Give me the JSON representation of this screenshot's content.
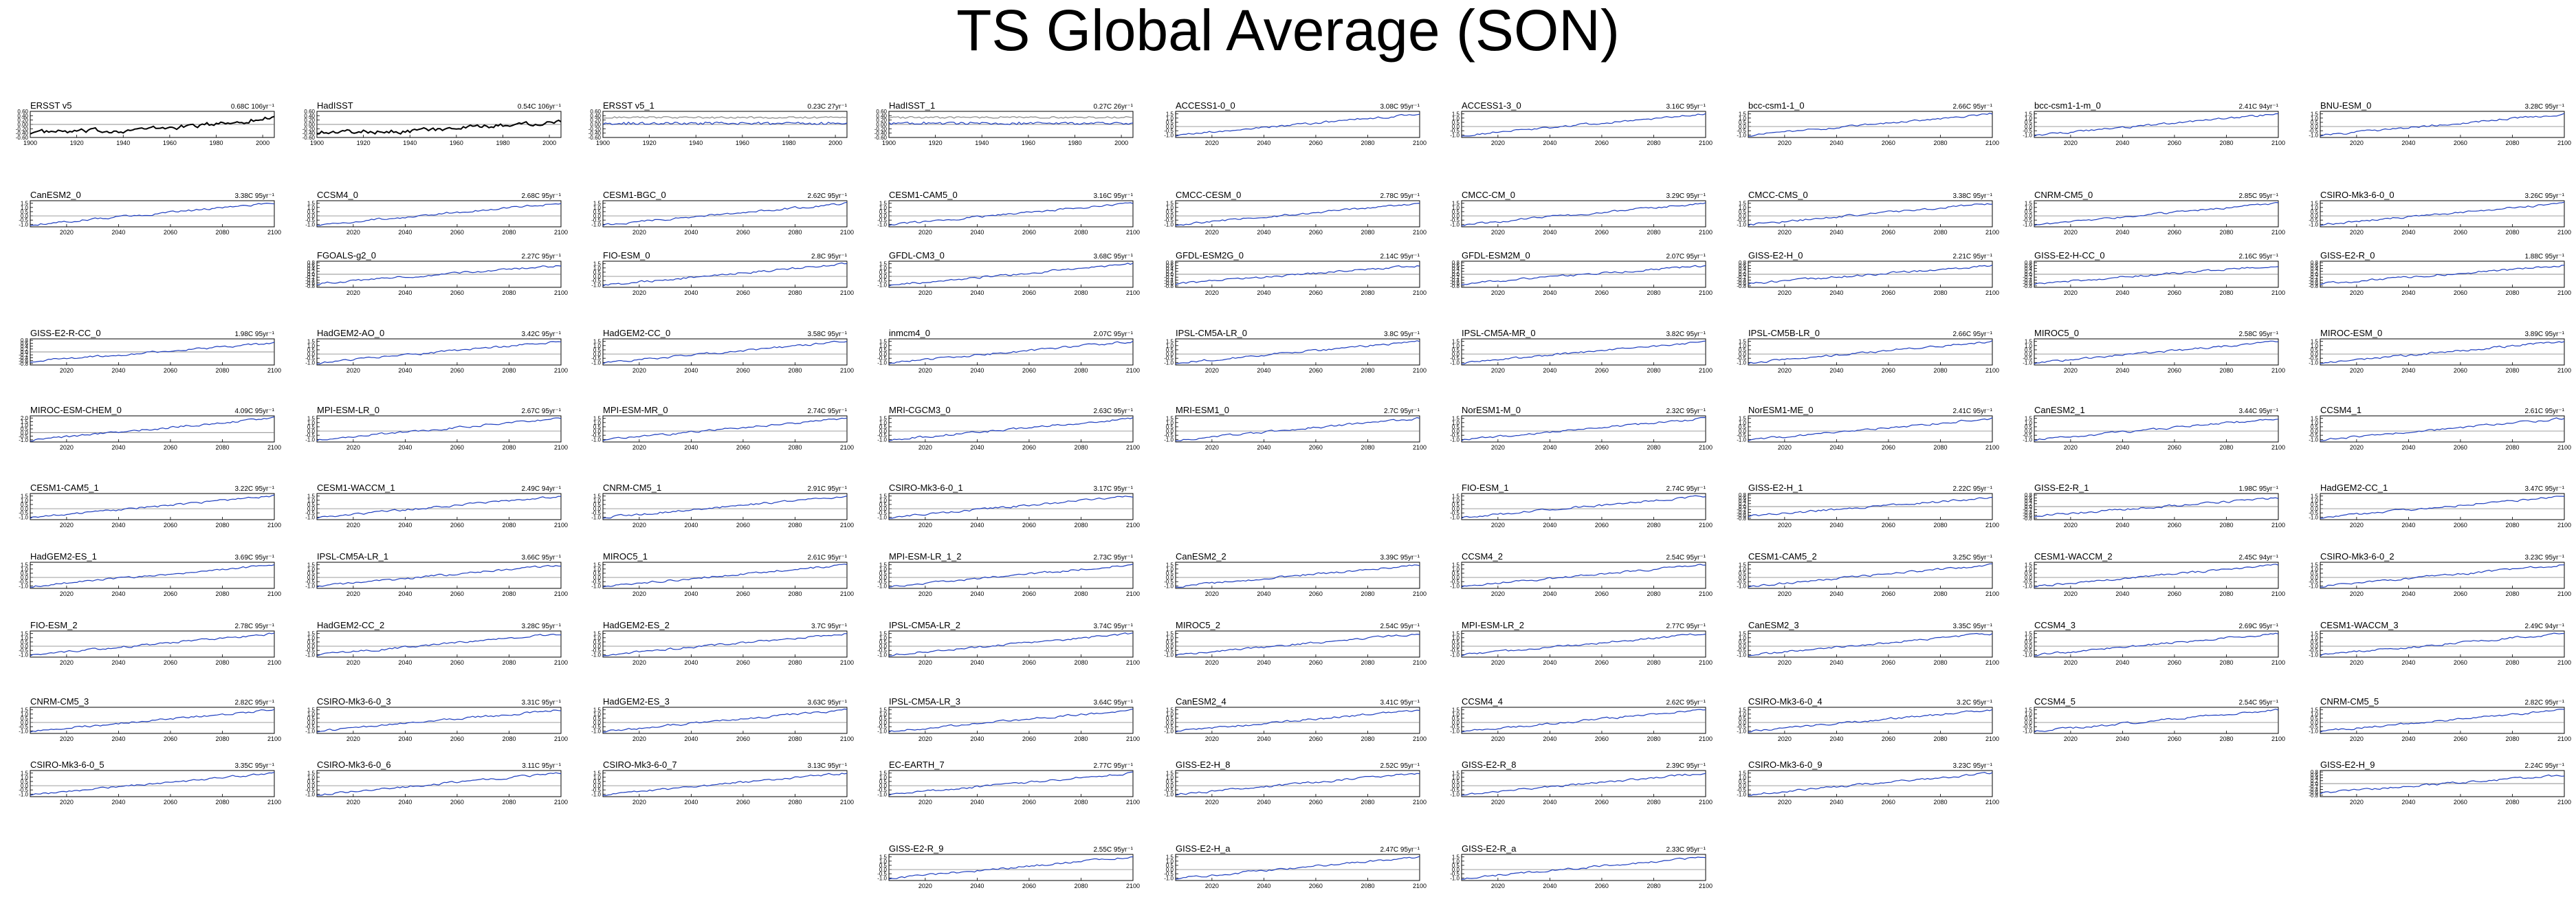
{
  "title": "TS Global Average (SON)",
  "colors": {
    "model_line": "#1f3fbf",
    "obs_line": "#000000",
    "zero_line": "#666666",
    "frame": "#000000"
  },
  "axes": {
    "obs_x_ticks": [
      "1900",
      "1920",
      "1940",
      "1960",
      "1980",
      "2000"
    ],
    "proj_x_ticks": [
      "2020",
      "2040",
      "2060",
      "2080",
      "2100"
    ],
    "y_ticks_large": [
      "1.5",
      "1.0",
      "0.5",
      "0.0",
      "-0.5",
      "-1.0"
    ],
    "y_ticks_small": [
      "0.8",
      "0.6",
      "0.4",
      "0.2",
      "0.0",
      "-0.2",
      "-0.4",
      "-0.6",
      "-0.8"
    ],
    "y_ticks_obs": [
      "0.60",
      "0.40",
      "0.20",
      "0.00",
      "-0.20",
      "-0.40",
      "-0.60"
    ],
    "y_ticks_wide": [
      "2.0",
      "1.5",
      "1.0",
      "0.5",
      "0.0",
      "-0.5",
      "-1.0"
    ]
  },
  "chart_data": [
    {
      "type": "line",
      "title": "ERSST v5",
      "trend": "0.68C 106yr⁻¹",
      "scale": "obs",
      "xlim": [
        1900,
        2005
      ],
      "ylim": [
        -0.6,
        0.6
      ],
      "trend_value": 0.68,
      "slot": [
        0,
        0
      ]
    },
    {
      "type": "line",
      "title": "HadISST",
      "trend": "0.54C 106yr⁻¹",
      "scale": "obs",
      "xlim": [
        1900,
        2005
      ],
      "ylim": [
        -0.6,
        0.6
      ],
      "trend_value": 0.54,
      "slot": [
        0,
        1
      ]
    },
    {
      "type": "line",
      "title": "ERSST v5_1",
      "trend": "0.23C 27yr⁻¹",
      "scale": "obsflat",
      "xlim": [
        1900,
        2005
      ],
      "ylim": [
        -0.6,
        0.6
      ],
      "trend_value": 0.23,
      "slot": [
        0,
        2
      ]
    },
    {
      "type": "line",
      "title": "HadISST_1",
      "trend": "0.27C 26yr⁻¹",
      "scale": "obsflat",
      "xlim": [
        1900,
        2005
      ],
      "ylim": [
        -0.6,
        0.6
      ],
      "trend_value": 0.27,
      "slot": [
        0,
        3
      ]
    },
    {
      "type": "line",
      "title": "ACCESS1-0_0",
      "trend": "3.08C 95yr⁻¹",
      "scale": "large",
      "trend_value": 3.08,
      "slot": [
        0,
        4
      ]
    },
    {
      "type": "line",
      "title": "ACCESS1-3_0",
      "trend": "3.16C 95yr⁻¹",
      "scale": "large",
      "trend_value": 3.16,
      "slot": [
        0,
        5
      ]
    },
    {
      "type": "line",
      "title": "bcc-csm1-1_0",
      "trend": "2.66C 95yr⁻¹",
      "scale": "large",
      "trend_value": 2.66,
      "slot": [
        0,
        6
      ]
    },
    {
      "type": "line",
      "title": "bcc-csm1-1-m_0",
      "trend": "2.41C 94yr⁻¹",
      "scale": "large",
      "trend_value": 2.41,
      "slot": [
        0,
        7
      ]
    },
    {
      "type": "line",
      "title": "BNU-ESM_0",
      "trend": "3.28C 95yr⁻¹",
      "scale": "large",
      "trend_value": 3.28,
      "slot": [
        0,
        8
      ]
    },
    {
      "type": "line",
      "title": "CanESM2_0",
      "trend": "3.38C 95yr⁻¹",
      "scale": "large",
      "trend_value": 3.38,
      "slot": [
        1,
        0
      ]
    },
    {
      "type": "line",
      "title": "CCSM4_0",
      "trend": "2.68C 95yr⁻¹",
      "scale": "large",
      "trend_value": 2.68,
      "slot": [
        1,
        1
      ]
    },
    {
      "type": "line",
      "title": "CESM1-BGC_0",
      "trend": "2.62C 95yr⁻¹",
      "scale": "large",
      "trend_value": 2.62,
      "slot": [
        1,
        2
      ]
    },
    {
      "type": "line",
      "title": "CESM1-CAM5_0",
      "trend": "3.16C 95yr⁻¹",
      "scale": "large",
      "trend_value": 3.16,
      "slot": [
        1,
        3
      ]
    },
    {
      "type": "line",
      "title": "CMCC-CESM_0",
      "trend": "2.78C 95yr⁻¹",
      "scale": "large",
      "trend_value": 2.78,
      "slot": [
        1,
        4
      ]
    },
    {
      "type": "line",
      "title": "CMCC-CM_0",
      "trend": "3.29C 95yr⁻¹",
      "scale": "large",
      "trend_value": 3.29,
      "slot": [
        1,
        5
      ]
    },
    {
      "type": "line",
      "title": "CMCC-CMS_0",
      "trend": "3.38C 95yr⁻¹",
      "scale": "large",
      "trend_value": 3.38,
      "slot": [
        1,
        6
      ]
    },
    {
      "type": "line",
      "title": "CNRM-CM5_0",
      "trend": "2.85C 95yr⁻¹",
      "scale": "large",
      "trend_value": 2.85,
      "slot": [
        1,
        7
      ]
    },
    {
      "type": "line",
      "title": "CSIRO-Mk3-6-0_0",
      "trend": "3.26C 95yr⁻¹",
      "scale": "large",
      "trend_value": 3.26,
      "slot": [
        1,
        8
      ]
    },
    {
      "type": "line",
      "title": "FGOALS-g2_0",
      "trend": "2.27C 95yr⁻¹",
      "scale": "small",
      "trend_value": 2.27,
      "slot": [
        2,
        1
      ]
    },
    {
      "type": "line",
      "title": "FIO-ESM_0",
      "trend": "2.8C 95yr⁻¹",
      "scale": "large",
      "trend_value": 2.8,
      "slot": [
        2,
        2
      ]
    },
    {
      "type": "line",
      "title": "GFDL-CM3_0",
      "trend": "3.68C 95yr⁻¹",
      "scale": "large",
      "trend_value": 3.68,
      "slot": [
        2,
        3
      ]
    },
    {
      "type": "line",
      "title": "GFDL-ESM2G_0",
      "trend": "2.14C 95yr⁻¹",
      "scale": "small",
      "trend_value": 2.14,
      "slot": [
        2,
        4
      ]
    },
    {
      "type": "line",
      "title": "GFDL-ESM2M_0",
      "trend": "2.07C 95yr⁻¹",
      "scale": "small",
      "trend_value": 2.07,
      "slot": [
        2,
        5
      ]
    },
    {
      "type": "line",
      "title": "GISS-E2-H_0",
      "trend": "2.21C 95yr⁻¹",
      "scale": "small",
      "trend_value": 2.21,
      "slot": [
        2,
        6
      ]
    },
    {
      "type": "line",
      "title": "GISS-E2-H-CC_0",
      "trend": "2.16C 95yr⁻¹",
      "scale": "small",
      "trend_value": 2.16,
      "slot": [
        2,
        7
      ]
    },
    {
      "type": "line",
      "title": "GISS-E2-R_0",
      "trend": "1.88C 95yr⁻¹",
      "scale": "small",
      "trend_value": 1.88,
      "slot": [
        2,
        8
      ]
    },
    {
      "type": "line",
      "title": "GISS-E2-R-CC_0",
      "trend": "1.98C 95yr⁻¹",
      "scale": "small",
      "trend_value": 1.98,
      "slot": [
        3,
        0
      ]
    },
    {
      "type": "line",
      "title": "HadGEM2-AO_0",
      "trend": "3.42C 95yr⁻¹",
      "scale": "large",
      "trend_value": 3.42,
      "slot": [
        3,
        1
      ]
    },
    {
      "type": "line",
      "title": "HadGEM2-CC_0",
      "trend": "3.58C 95yr⁻¹",
      "scale": "large",
      "trend_value": 3.58,
      "slot": [
        3,
        2
      ]
    },
    {
      "type": "line",
      "title": "inmcm4_0",
      "trend": "2.07C 95yr⁻¹",
      "scale": "large",
      "trend_value": 2.07,
      "slot": [
        3,
        3
      ]
    },
    {
      "type": "line",
      "title": "IPSL-CM5A-LR_0",
      "trend": "3.8C 95yr⁻¹",
      "scale": "large",
      "trend_value": 3.8,
      "slot": [
        3,
        4
      ]
    },
    {
      "type": "line",
      "title": "IPSL-CM5A-MR_0",
      "trend": "3.82C 95yr⁻¹",
      "scale": "large",
      "trend_value": 3.82,
      "slot": [
        3,
        5
      ]
    },
    {
      "type": "line",
      "title": "IPSL-CM5B-LR_0",
      "trend": "2.66C 95yr⁻¹",
      "scale": "large",
      "trend_value": 2.66,
      "slot": [
        3,
        6
      ]
    },
    {
      "type": "line",
      "title": "MIROC5_0",
      "trend": "2.58C 95yr⁻¹",
      "scale": "large",
      "trend_value": 2.58,
      "slot": [
        3,
        7
      ]
    },
    {
      "type": "line",
      "title": "MIROC-ESM_0",
      "trend": "3.89C 95yr⁻¹",
      "scale": "large",
      "trend_value": 3.89,
      "slot": [
        3,
        8
      ]
    },
    {
      "type": "line",
      "title": "MIROC-ESM-CHEM_0",
      "trend": "4.09C 95yr⁻¹",
      "scale": "wide",
      "trend_value": 4.09,
      "slot": [
        4,
        0
      ]
    },
    {
      "type": "line",
      "title": "MPI-ESM-LR_0",
      "trend": "2.67C 95yr⁻¹",
      "scale": "large",
      "trend_value": 2.67,
      "slot": [
        4,
        1
      ]
    },
    {
      "type": "line",
      "title": "MPI-ESM-MR_0",
      "trend": "2.74C 95yr⁻¹",
      "scale": "large",
      "trend_value": 2.74,
      "slot": [
        4,
        2
      ]
    },
    {
      "type": "line",
      "title": "MRI-CGCM3_0",
      "trend": "2.63C 95yr⁻¹",
      "scale": "large",
      "trend_value": 2.63,
      "slot": [
        4,
        3
      ]
    },
    {
      "type": "line",
      "title": "MRI-ESM1_0",
      "trend": "2.7C 95yr⁻¹",
      "scale": "large",
      "trend_value": 2.7,
      "slot": [
        4,
        4
      ]
    },
    {
      "type": "line",
      "title": "NorESM1-M_0",
      "trend": "2.32C 95yr⁻¹",
      "scale": "large",
      "trend_value": 2.32,
      "slot": [
        4,
        5
      ]
    },
    {
      "type": "line",
      "title": "NorESM1-ME_0",
      "trend": "2.41C 95yr⁻¹",
      "scale": "large",
      "trend_value": 2.41,
      "slot": [
        4,
        6
      ]
    },
    {
      "type": "line",
      "title": "CanESM2_1",
      "trend": "3.44C 95yr⁻¹",
      "scale": "large",
      "trend_value": 3.44,
      "slot": [
        4,
        7
      ]
    },
    {
      "type": "line",
      "title": "CCSM4_1",
      "trend": "2.61C 95yr⁻¹",
      "scale": "large",
      "trend_value": 2.61,
      "slot": [
        4,
        8
      ]
    },
    {
      "type": "line",
      "title": "CESM1-CAM5_1",
      "trend": "3.22C 95yr⁻¹",
      "scale": "large",
      "trend_value": 3.22,
      "slot": [
        5,
        0
      ]
    },
    {
      "type": "line",
      "title": "CESM1-WACCM_1",
      "trend": "2.49C 94yr⁻¹",
      "scale": "large",
      "trend_value": 2.49,
      "slot": [
        5,
        1
      ]
    },
    {
      "type": "line",
      "title": "CNRM-CM5_1",
      "trend": "2.91C 95yr⁻¹",
      "scale": "large",
      "trend_value": 2.91,
      "slot": [
        5,
        2
      ]
    },
    {
      "type": "line",
      "title": "CSIRO-Mk3-6-0_1",
      "trend": "3.17C 95yr⁻¹",
      "scale": "large",
      "trend_value": 3.17,
      "slot": [
        5,
        3
      ]
    },
    {
      "type": "line",
      "title": "FIO-ESM_1",
      "trend": "2.74C 95yr⁻¹",
      "scale": "large",
      "trend_value": 2.74,
      "slot": [
        5,
        5
      ]
    },
    {
      "type": "line",
      "title": "GISS-E2-H_1",
      "trend": "2.22C 95yr⁻¹",
      "scale": "small",
      "trend_value": 2.22,
      "slot": [
        5,
        6
      ]
    },
    {
      "type": "line",
      "title": "GISS-E2-R_1",
      "trend": "1.98C 95yr⁻¹",
      "scale": "small",
      "trend_value": 1.98,
      "slot": [
        5,
        7
      ]
    },
    {
      "type": "line",
      "title": "HadGEM2-CC_1",
      "trend": "3.47C 95yr⁻¹",
      "scale": "large",
      "trend_value": 3.47,
      "slot": [
        5,
        8
      ]
    },
    {
      "type": "line",
      "title": "HadGEM2-ES_1",
      "trend": "3.69C 95yr⁻¹",
      "scale": "large",
      "trend_value": 3.69,
      "slot": [
        6,
        0
      ]
    },
    {
      "type": "line",
      "title": "IPSL-CM5A-LR_1",
      "trend": "3.66C 95yr⁻¹",
      "scale": "large",
      "trend_value": 3.66,
      "slot": [
        6,
        1
      ]
    },
    {
      "type": "line",
      "title": "MIROC5_1",
      "trend": "2.61C 95yr⁻¹",
      "scale": "large",
      "trend_value": 2.61,
      "slot": [
        6,
        2
      ]
    },
    {
      "type": "line",
      "title": "MPI-ESM-LR_1_2",
      "trend": "2.73C 95yr⁻¹",
      "scale": "large",
      "trend_value": 2.73,
      "slot": [
        6,
        3
      ]
    },
    {
      "type": "line",
      "title": "CanESM2_2",
      "trend": "3.39C 95yr⁻¹",
      "scale": "large",
      "trend_value": 3.39,
      "slot": [
        6,
        4
      ]
    },
    {
      "type": "line",
      "title": "CCSM4_2",
      "trend": "2.54C 95yr⁻¹",
      "scale": "large",
      "trend_value": 2.54,
      "slot": [
        6,
        5
      ]
    },
    {
      "type": "line",
      "title": "CESM1-CAM5_2",
      "trend": "3.25C 95yr⁻¹",
      "scale": "large",
      "trend_value": 3.25,
      "slot": [
        6,
        6
      ]
    },
    {
      "type": "line",
      "title": "CESM1-WACCM_2",
      "trend": "2.45C 94yr⁻¹",
      "scale": "large",
      "trend_value": 2.45,
      "slot": [
        6,
        7
      ]
    },
    {
      "type": "line",
      "title": "CSIRO-Mk3-6-0_2",
      "trend": "3.23C 95yr⁻¹",
      "scale": "large",
      "trend_value": 3.23,
      "slot": [
        6,
        8
      ]
    },
    {
      "type": "line",
      "title": "FIO-ESM_2",
      "trend": "2.78C 95yr⁻¹",
      "scale": "large",
      "trend_value": 2.78,
      "slot": [
        7,
        0
      ]
    },
    {
      "type": "line",
      "title": "HadGEM2-CC_2",
      "trend": "3.28C 95yr⁻¹",
      "scale": "large",
      "trend_value": 3.28,
      "slot": [
        7,
        1
      ]
    },
    {
      "type": "line",
      "title": "HadGEM2-ES_2",
      "trend": "3.7C 95yr⁻¹",
      "scale": "large",
      "trend_value": 3.7,
      "slot": [
        7,
        2
      ]
    },
    {
      "type": "line",
      "title": "IPSL-CM5A-LR_2",
      "trend": "3.74C 95yr⁻¹",
      "scale": "large",
      "trend_value": 3.74,
      "slot": [
        7,
        3
      ]
    },
    {
      "type": "line",
      "title": "MIROC5_2",
      "trend": "2.54C 95yr⁻¹",
      "scale": "large",
      "trend_value": 2.54,
      "slot": [
        7,
        4
      ]
    },
    {
      "type": "line",
      "title": "MPI-ESM-LR_2",
      "trend": "2.77C 95yr⁻¹",
      "scale": "large",
      "trend_value": 2.77,
      "slot": [
        7,
        5
      ]
    },
    {
      "type": "line",
      "title": "CanESM2_3",
      "trend": "3.35C 95yr⁻¹",
      "scale": "large",
      "trend_value": 3.35,
      "slot": [
        7,
        6
      ]
    },
    {
      "type": "line",
      "title": "CCSM4_3",
      "trend": "2.69C 95yr⁻¹",
      "scale": "large",
      "trend_value": 2.69,
      "slot": [
        7,
        7
      ]
    },
    {
      "type": "line",
      "title": "CESM1-WACCM_3",
      "trend": "2.49C 94yr⁻¹",
      "scale": "large",
      "trend_value": 2.49,
      "slot": [
        7,
        8
      ]
    },
    {
      "type": "line",
      "title": "CNRM-CM5_3",
      "trend": "2.82C 95yr⁻¹",
      "scale": "large",
      "trend_value": 2.82,
      "slot": [
        8,
        0
      ]
    },
    {
      "type": "line",
      "title": "CSIRO-Mk3-6-0_3",
      "trend": "3.31C 95yr⁻¹",
      "scale": "large",
      "trend_value": 3.31,
      "slot": [
        8,
        1
      ]
    },
    {
      "type": "line",
      "title": "HadGEM2-ES_3",
      "trend": "3.63C 95yr⁻¹",
      "scale": "large",
      "trend_value": 3.63,
      "slot": [
        8,
        2
      ]
    },
    {
      "type": "line",
      "title": "IPSL-CM5A-LR_3",
      "trend": "3.64C 95yr⁻¹",
      "scale": "large",
      "trend_value": 3.64,
      "slot": [
        8,
        3
      ]
    },
    {
      "type": "line",
      "title": "CanESM2_4",
      "trend": "3.41C 95yr⁻¹",
      "scale": "large",
      "trend_value": 3.41,
      "slot": [
        8,
        4
      ]
    },
    {
      "type": "line",
      "title": "CCSM4_4",
      "trend": "2.62C 95yr⁻¹",
      "scale": "large",
      "trend_value": 2.62,
      "slot": [
        8,
        5
      ]
    },
    {
      "type": "line",
      "title": "CSIRO-Mk3-6-0_4",
      "trend": "3.2C 95yr⁻¹",
      "scale": "large",
      "trend_value": 3.2,
      "slot": [
        8,
        6
      ]
    },
    {
      "type": "line",
      "title": "CCSM4_5",
      "trend": "2.54C 95yr⁻¹",
      "scale": "large",
      "trend_value": 2.54,
      "slot": [
        8,
        7
      ]
    },
    {
      "type": "line",
      "title": "CNRM-CM5_5",
      "trend": "2.82C 95yr⁻¹",
      "scale": "large",
      "trend_value": 2.82,
      "slot": [
        8,
        8
      ]
    },
    {
      "type": "line",
      "title": "CSIRO-Mk3-6-0_5",
      "trend": "3.35C 95yr⁻¹",
      "scale": "large",
      "trend_value": 3.35,
      "slot": [
        9,
        0
      ]
    },
    {
      "type": "line",
      "title": "CSIRO-Mk3-6-0_6",
      "trend": "3.11C 95yr⁻¹",
      "scale": "large",
      "trend_value": 3.11,
      "slot": [
        9,
        1
      ]
    },
    {
      "type": "line",
      "title": "CSIRO-Mk3-6-0_7",
      "trend": "3.13C 95yr⁻¹",
      "scale": "large",
      "trend_value": 3.13,
      "slot": [
        9,
        2
      ]
    },
    {
      "type": "line",
      "title": "EC-EARTH_7",
      "trend": "2.77C 95yr⁻¹",
      "scale": "large",
      "trend_value": 2.77,
      "slot": [
        9,
        3
      ]
    },
    {
      "type": "line",
      "title": "GISS-E2-H_8",
      "trend": "2.52C 95yr⁻¹",
      "scale": "large",
      "trend_value": 2.52,
      "slot": [
        9,
        4
      ]
    },
    {
      "type": "line",
      "title": "GISS-E2-R_8",
      "trend": "2.39C 95yr⁻¹",
      "scale": "large",
      "trend_value": 2.39,
      "slot": [
        9,
        5
      ]
    },
    {
      "type": "line",
      "title": "CSIRO-Mk3-6-0_9",
      "trend": "3.23C 95yr⁻¹",
      "scale": "large",
      "trend_value": 3.23,
      "slot": [
        9,
        6
      ]
    },
    {
      "type": "line",
      "title": "GISS-E2-H_9",
      "trend": "2.24C 95yr⁻¹",
      "scale": "small",
      "trend_value": 2.24,
      "slot": [
        9,
        8
      ]
    },
    {
      "type": "line",
      "title": "GISS-E2-R_9",
      "trend": "2.55C 95yr⁻¹",
      "scale": "large",
      "trend_value": 2.55,
      "slot": [
        10,
        3
      ]
    },
    {
      "type": "line",
      "title": "GISS-E2-H_a",
      "trend": "2.47C 95yr⁻¹",
      "scale": "large",
      "trend_value": 2.47,
      "slot": [
        10,
        4
      ]
    },
    {
      "type": "line",
      "title": "GISS-E2-R_a",
      "trend": "2.33C 95yr⁻¹",
      "scale": "large",
      "trend_value": 2.33,
      "slot": [
        10,
        5
      ]
    }
  ]
}
